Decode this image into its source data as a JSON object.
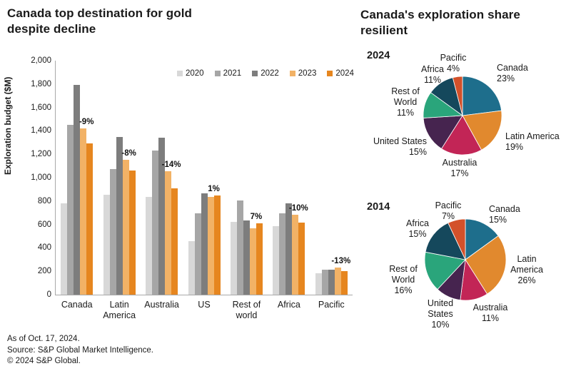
{
  "titles": {
    "left": "Canada top destination for gold\ndespite decline",
    "right": "Canada's exploration share resilient"
  },
  "footer": {
    "as_of": "As of Oct. 17, 2024.",
    "source": "Source: S&P Global Market Intelligence.",
    "copyright": "© 2024 S&P Global."
  },
  "colors": {
    "text": "#1a1a1a",
    "axis": "#a9a9a9",
    "series": {
      "2020": "#d8d8d8",
      "2021": "#a6a6a6",
      "2022": "#7d7d7d",
      "2023": "#f2b266",
      "2024": "#e6861f"
    },
    "regions": {
      "Canada": "#1e6e8c",
      "Latin America": "#e1892e",
      "Australia": "#c22556",
      "United States": "#46244f",
      "Rest of World": "#2aa57b",
      "Africa": "#15485c",
      "Pacific": "#d3512a"
    }
  },
  "chart_data": [
    {
      "type": "bar",
      "title": "Canada top destination for gold despite decline",
      "xlabel": "",
      "ylabel": "Exploration budget ($M)",
      "ylim": [
        0,
        2000
      ],
      "ytick_step": 200,
      "grid": false,
      "legend_position": "top-right",
      "legend": [
        "2020",
        "2021",
        "2022",
        "2023",
        "2024"
      ],
      "categories": [
        "Canada",
        "Latin\nAmerica",
        "Australia",
        "US",
        "Rest of\nworld",
        "Africa",
        "Pacific"
      ],
      "series": [
        {
          "name": "2020",
          "values": [
            780,
            855,
            835,
            460,
            620,
            585,
            180
          ]
        },
        {
          "name": "2021",
          "values": [
            1450,
            1075,
            1230,
            695,
            805,
            695,
            215
          ]
        },
        {
          "name": "2022",
          "values": [
            1790,
            1350,
            1340,
            865,
            635,
            780,
            215
          ]
        },
        {
          "name": "2023",
          "values": [
            1420,
            1150,
            1055,
            835,
            570,
            685,
            230
          ]
        },
        {
          "name": "2024",
          "values": [
            1292,
            1060,
            910,
            845,
            610,
            618,
            200
          ]
        }
      ],
      "change_labels": [
        "-9%",
        "-8%",
        "-14%",
        "1%",
        "7%",
        "-10%",
        "-13%"
      ]
    },
    {
      "type": "pie",
      "title": "2024",
      "categories": [
        "Canada",
        "Latin America",
        "Australia",
        "United States",
        "Rest of World",
        "Africa",
        "Pacific"
      ],
      "values": [
        23,
        19,
        17,
        15,
        11,
        11,
        4
      ],
      "unit": "%",
      "start_angle": -90,
      "direction": "clockwise"
    },
    {
      "type": "pie",
      "title": "2014",
      "categories": [
        "Canada",
        "Latin America",
        "Australia",
        "United States",
        "Rest of World",
        "Africa",
        "Pacific"
      ],
      "values": [
        15,
        26,
        11,
        10,
        16,
        15,
        7
      ],
      "unit": "%",
      "start_angle": -90,
      "direction": "clockwise"
    }
  ],
  "pie_labels": {
    "p2024": {
      "year": "2024",
      "canada": "Canada\n23%",
      "latam": "Latin America\n19%",
      "australia": "Australia\n17%",
      "us": "United States\n15%",
      "row": "Rest of\nWorld\n11%",
      "africa": "Africa\n11%",
      "pacific": "Pacific\n4%"
    },
    "p2014": {
      "year": "2014",
      "canada": "Canada\n15%",
      "latam": "Latin\nAmerica\n26%",
      "australia": "Australia\n11%",
      "us": "United\nStates\n10%",
      "row": "Rest of\nWorld\n16%",
      "africa": "Africa\n15%",
      "pacific": "Pacific\n7%"
    }
  }
}
